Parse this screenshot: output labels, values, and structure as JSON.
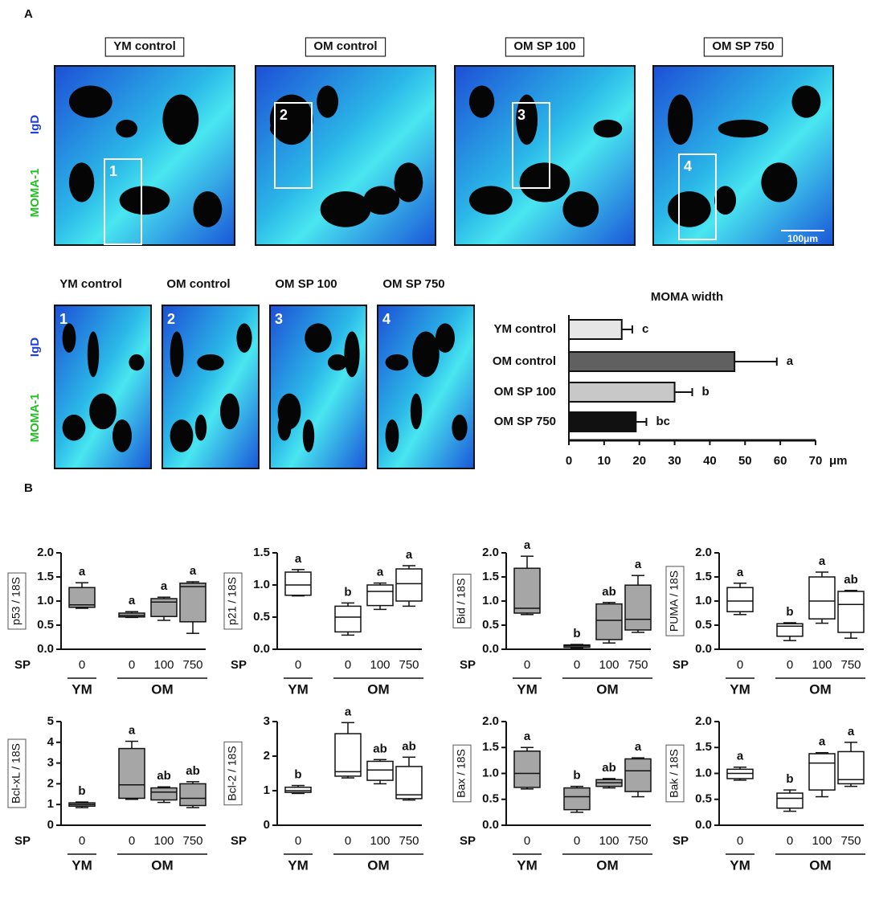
{
  "figure": {
    "panel_labels": [
      "A",
      "B"
    ],
    "image_titles": [
      "YM control",
      "OM control",
      "OM SP 100",
      "OM SP 750"
    ],
    "region_numbers": [
      "1",
      "2",
      "3",
      "4"
    ],
    "stain_labels": [
      "IgD",
      "MOMA-1"
    ],
    "scale_bar": "100μm"
  },
  "chart_data": [
    {
      "type": "bar",
      "orientation": "horizontal",
      "title": "MOMA width",
      "categories": [
        "YM control",
        "OM control",
        "OM  SP 100",
        "OM  SP 750"
      ],
      "values": [
        15,
        47,
        30,
        19
      ],
      "errors": [
        3,
        12,
        5,
        3
      ],
      "colors": [
        "#e6e6e6",
        "#606060",
        "#c8c8c8",
        "#111111"
      ],
      "annotations": [
        "c",
        "a",
        "b",
        "bc"
      ],
      "xlim": [
        0,
        70
      ],
      "xticks": [
        0,
        10,
        20,
        30,
        40,
        50,
        60,
        70
      ],
      "xlabel": "μm"
    },
    {
      "type": "box",
      "ylabel": "p53 / 18S",
      "color": "#a6a6a6",
      "xlabel": "SP",
      "ylim": [
        0,
        2
      ],
      "yticks": [
        {
          "value": 0,
          "label": "0.0"
        },
        0.5,
        {
          "value": 1,
          "label": "1.0"
        },
        1.5,
        {
          "value": 2,
          "label": "2.0"
        }
      ],
      "groups": [
        {
          "name": "YM",
          "categories": [
            "0"
          ]
        },
        {
          "name": "OM",
          "categories": [
            "0",
            "100",
            "750"
          ]
        }
      ],
      "boxes": [
        {
          "min": 0.85,
          "q1": 0.87,
          "median": 0.92,
          "q3": 1.28,
          "max": 1.38
        },
        {
          "min": 0.66,
          "q1": 0.67,
          "median": 0.7,
          "q3": 0.75,
          "max": 0.78
        },
        {
          "min": 0.6,
          "q1": 0.68,
          "median": 0.98,
          "q3": 1.05,
          "max": 1.08
        },
        {
          "min": 0.33,
          "q1": 0.57,
          "median": 1.3,
          "q3": 1.37,
          "max": 1.4
        }
      ],
      "annotations": [
        "a",
        "a",
        "a",
        "a"
      ]
    },
    {
      "type": "box",
      "ylabel": "p21 / 18S",
      "color": "#ffffff",
      "xlabel": "SP",
      "ylim": [
        0,
        1.5
      ],
      "yticks": [
        {
          "value": 0,
          "label": "0.0"
        },
        0.5,
        {
          "value": 1,
          "label": "1.0"
        },
        1.5
      ],
      "groups": [
        {
          "name": "YM",
          "categories": [
            "0"
          ]
        },
        {
          "name": "OM",
          "categories": [
            "0",
            "100",
            "750"
          ]
        }
      ],
      "boxes": [
        {
          "min": 0.83,
          "q1": 0.84,
          "median": 1.0,
          "q3": 1.2,
          "max": 1.24
        },
        {
          "min": 0.22,
          "q1": 0.27,
          "median": 0.5,
          "q3": 0.67,
          "max": 0.72
        },
        {
          "min": 0.62,
          "q1": 0.68,
          "median": 0.9,
          "q3": 1.0,
          "max": 1.03
        },
        {
          "min": 0.67,
          "q1": 0.75,
          "median": 1.02,
          "q3": 1.25,
          "max": 1.3
        }
      ],
      "annotations": [
        "a",
        "b",
        "a",
        "a"
      ]
    },
    {
      "type": "box",
      "ylabel": "Bid / 18S",
      "color": "#a6a6a6",
      "xlabel": "SP",
      "ylim": [
        0,
        2
      ],
      "yticks": [
        {
          "value": 0,
          "label": "0.0"
        },
        0.5,
        {
          "value": 1,
          "label": "1.0"
        },
        1.5,
        {
          "value": 2,
          "label": "2.0"
        }
      ],
      "groups": [
        {
          "name": "YM",
          "categories": [
            "0"
          ]
        },
        {
          "name": "OM",
          "categories": [
            "0",
            "100",
            "750"
          ]
        }
      ],
      "boxes": [
        {
          "min": 0.72,
          "q1": 0.75,
          "median": 0.85,
          "q3": 1.68,
          "max": 1.93
        },
        {
          "min": 0.02,
          "q1": 0.04,
          "median": 0.07,
          "q3": 0.09,
          "max": 0.1
        },
        {
          "min": 0.13,
          "q1": 0.2,
          "median": 0.6,
          "q3": 0.94,
          "max": 0.97
        },
        {
          "min": 0.35,
          "q1": 0.4,
          "median": 0.62,
          "q3": 1.33,
          "max": 1.53
        }
      ],
      "annotations": [
        "a",
        "b",
        "ab",
        "a"
      ]
    },
    {
      "type": "box",
      "ylabel": "PUMA / 18S",
      "color": "#ffffff",
      "xlabel": "SP",
      "ylim": [
        0,
        2
      ],
      "yticks": [
        {
          "value": 0,
          "label": "0.0"
        },
        0.5,
        {
          "value": 1,
          "label": "1.0"
        },
        1.5,
        {
          "value": 2,
          "label": "2.0"
        }
      ],
      "groups": [
        {
          "name": "YM",
          "categories": [
            "0"
          ]
        },
        {
          "name": "OM",
          "categories": [
            "0",
            "100",
            "750"
          ]
        }
      ],
      "boxes": [
        {
          "min": 0.72,
          "q1": 0.78,
          "median": 1.0,
          "q3": 1.28,
          "max": 1.37
        },
        {
          "min": 0.18,
          "q1": 0.27,
          "median": 0.48,
          "q3": 0.53,
          "max": 0.55
        },
        {
          "min": 0.54,
          "q1": 0.63,
          "median": 1.0,
          "q3": 1.5,
          "max": 1.6
        },
        {
          "min": 0.23,
          "q1": 0.35,
          "median": 0.93,
          "q3": 1.2,
          "max": 1.22
        }
      ],
      "annotations": [
        "a",
        "b",
        "a",
        "ab"
      ]
    },
    {
      "type": "box",
      "ylabel": "Bcl-xL / 18S",
      "color": "#a6a6a6",
      "xlabel": "SP",
      "ylim": [
        0,
        5
      ],
      "yticks": [
        0,
        1,
        2,
        3,
        4,
        5
      ],
      "groups": [
        {
          "name": "YM",
          "categories": [
            "0"
          ]
        },
        {
          "name": "OM",
          "categories": [
            "0",
            "100",
            "750"
          ]
        }
      ],
      "boxes": [
        {
          "min": 0.85,
          "q1": 0.92,
          "median": 1.0,
          "q3": 1.08,
          "max": 1.12
        },
        {
          "min": 1.25,
          "q1": 1.3,
          "median": 1.95,
          "q3": 3.7,
          "max": 4.05
        },
        {
          "min": 1.1,
          "q1": 1.22,
          "median": 1.6,
          "q3": 1.8,
          "max": 1.85
        },
        {
          "min": 0.85,
          "q1": 0.95,
          "median": 1.3,
          "q3": 2.0,
          "max": 2.1
        }
      ],
      "annotations": [
        "b",
        "a",
        "ab",
        "ab"
      ]
    },
    {
      "type": "box",
      "ylabel": "Bcl-2 / 18S",
      "color": "#ffffff",
      "xlabel": "SP",
      "ylim": [
        0,
        3
      ],
      "yticks": [
        0,
        1,
        2,
        3
      ],
      "groups": [
        {
          "name": "YM",
          "categories": [
            "0"
          ]
        },
        {
          "name": "OM",
          "categories": [
            "0",
            "100",
            "750"
          ]
        }
      ],
      "boxes": [
        {
          "min": 0.92,
          "q1": 0.95,
          "median": 1.0,
          "q3": 1.1,
          "max": 1.15
        },
        {
          "min": 1.37,
          "q1": 1.42,
          "median": 1.55,
          "q3": 2.65,
          "max": 2.97
        },
        {
          "min": 1.2,
          "q1": 1.3,
          "median": 1.6,
          "q3": 1.85,
          "max": 1.9
        },
        {
          "min": 0.73,
          "q1": 0.77,
          "median": 0.88,
          "q3": 1.7,
          "max": 1.97
        }
      ],
      "annotations": [
        "b",
        "a",
        "ab",
        "ab"
      ]
    },
    {
      "type": "box",
      "ylabel": "Bax / 18S",
      "color": "#a6a6a6",
      "xlabel": "SP",
      "ylim": [
        0,
        2
      ],
      "yticks": [
        {
          "value": 0,
          "label": "0.0"
        },
        0.5,
        {
          "value": 1,
          "label": "1.0"
        },
        1.5,
        {
          "value": 2,
          "label": "2.0"
        }
      ],
      "groups": [
        {
          "name": "YM",
          "categories": [
            "0"
          ]
        },
        {
          "name": "OM",
          "categories": [
            "0",
            "100",
            "750"
          ]
        }
      ],
      "boxes": [
        {
          "min": 0.7,
          "q1": 0.73,
          "median": 1.0,
          "q3": 1.43,
          "max": 1.5
        },
        {
          "min": 0.25,
          "q1": 0.3,
          "median": 0.55,
          "q3": 0.72,
          "max": 0.75
        },
        {
          "min": 0.72,
          "q1": 0.75,
          "median": 0.82,
          "q3": 0.88,
          "max": 0.9
        },
        {
          "min": 0.55,
          "q1": 0.65,
          "median": 1.05,
          "q3": 1.28,
          "max": 1.3
        }
      ],
      "annotations": [
        "a",
        "b",
        "ab",
        "a"
      ]
    },
    {
      "type": "box",
      "ylabel": "Bak / 18S",
      "color": "#ffffff",
      "xlabel": "SP",
      "ylim": [
        0,
        2
      ],
      "yticks": [
        {
          "value": 0,
          "label": "0.0"
        },
        0.5,
        {
          "value": 1,
          "label": "1.0"
        },
        1.5,
        {
          "value": 2,
          "label": "2.0"
        }
      ],
      "groups": [
        {
          "name": "YM",
          "categories": [
            "0"
          ]
        },
        {
          "name": "OM",
          "categories": [
            "0",
            "100",
            "750"
          ]
        }
      ],
      "boxes": [
        {
          "min": 0.87,
          "q1": 0.9,
          "median": 1.0,
          "q3": 1.08,
          "max": 1.12
        },
        {
          "min": 0.27,
          "q1": 0.33,
          "median": 0.52,
          "q3": 0.62,
          "max": 0.68
        },
        {
          "min": 0.55,
          "q1": 0.68,
          "median": 1.2,
          "q3": 1.38,
          "max": 1.4
        },
        {
          "min": 0.75,
          "q1": 0.8,
          "median": 0.88,
          "q3": 1.42,
          "max": 1.6
        }
      ],
      "annotations": [
        "a",
        "b",
        "a",
        "a"
      ]
    }
  ]
}
